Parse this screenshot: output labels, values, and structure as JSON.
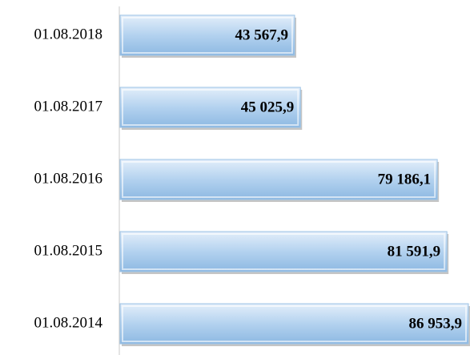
{
  "chart_data": {
    "type": "bar",
    "orientation": "horizontal",
    "categories": [
      "01.08.2018",
      "01.08.2017",
      "01.08.2016",
      "01.08.2015",
      "01.08.2014"
    ],
    "values": [
      43567.9,
      45025.9,
      79186.1,
      81591.9,
      86953.9
    ],
    "value_labels": [
      "43 567,9",
      "45 025,9",
      "79 186,1",
      "81 591,9",
      "86 953,9"
    ],
    "color": "#9cc3e6"
  }
}
